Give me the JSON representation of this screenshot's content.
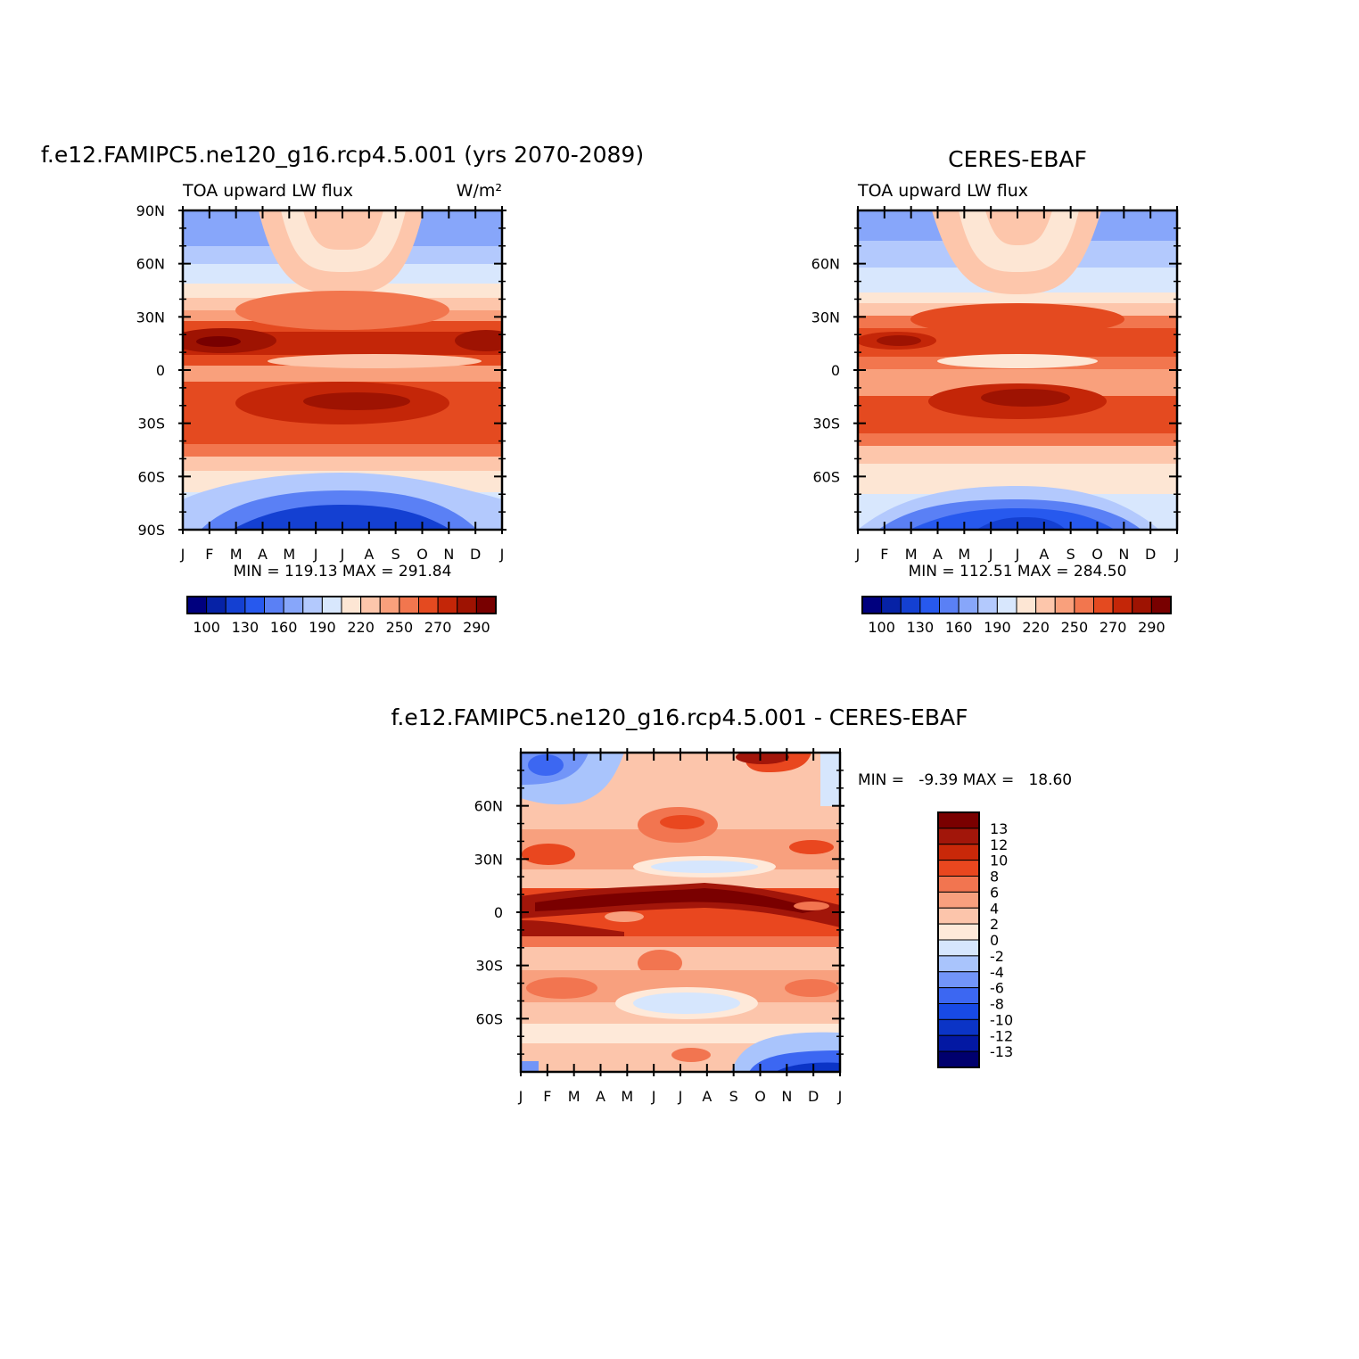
{
  "months": [
    "J",
    "F",
    "M",
    "A",
    "M",
    "J",
    "J",
    "A",
    "S",
    "O",
    "N",
    "D",
    "J"
  ],
  "palette": {
    "upward": [
      "#00007e",
      "#0622a6",
      "#1440d2",
      "#2759ee",
      "#5a80f5",
      "#87a6fa",
      "#b3c9fd",
      "#d8e7fd",
      "#fde6d4",
      "#fdc6ab",
      "#f9a07c",
      "#f2764e",
      "#e44a20",
      "#c42608",
      "#9e1302",
      "#780000"
    ],
    "diff": [
      "#00006e",
      "#0318a3",
      "#0b34c6",
      "#184ae5",
      "#3c67f2",
      "#7295f8",
      "#a9c4fc",
      "#d6e6fd",
      "#fee9d9",
      "#fcc5ab",
      "#f8a07e",
      "#f27550",
      "#e9471f",
      "#c92809",
      "#a2160a",
      "#7a0000"
    ]
  },
  "charts": [
    {
      "id": "model",
      "main_title": "f.e12.FAMIPC5.ne120_g16.rcp4.5.001 (yrs 2070-2089)",
      "left_string": "TOA upward LW flux",
      "right_string": "W/m²",
      "ytick_labels": [
        "90N",
        "60N",
        "30N",
        "0",
        "30S",
        "60S",
        "90S"
      ],
      "minmax": "MIN = 119.13 MAX = 291.84",
      "colorbar_labels": [
        "100",
        "130",
        "160",
        "190",
        "220",
        "250",
        "270",
        "290"
      ]
    },
    {
      "id": "obs",
      "main_title": "CERES-EBAF",
      "left_string": "TOA upward LW flux",
      "ytick_labels": [
        "60N",
        "30N",
        "0",
        "30S",
        "60S"
      ],
      "minmax": "MIN = 112.51 MAX = 284.50",
      "colorbar_labels": [
        "100",
        "130",
        "160",
        "190",
        "220",
        "250",
        "270",
        "290"
      ]
    },
    {
      "id": "diff",
      "main_title": "f.e12.FAMIPC5.ne120_g16.rcp4.5.001 - CERES-EBAF",
      "ytick_labels": [
        "60N",
        "30N",
        "0",
        "30S",
        "60S"
      ],
      "minmax": "MIN =   -9.39 MAX =   18.60",
      "colorbar_labels": [
        "13",
        "12",
        "10",
        "8",
        "6",
        "4",
        "2",
        "0",
        "-2",
        "-4",
        "-6",
        "-8",
        "-10",
        "-12",
        "-13"
      ]
    }
  ],
  "chart_data": [
    {
      "type": "heatmap",
      "title": "f.e12.FAMIPC5.ne120_g16.rcp4.5.001 (yrs 2070-2089)",
      "subtitle": "TOA upward LW flux",
      "units": "W/m²",
      "x": [
        "J",
        "F",
        "M",
        "A",
        "M",
        "J",
        "J",
        "A",
        "S",
        "O",
        "N",
        "D",
        "J"
      ],
      "y_ticks": [
        "90N",
        "60N",
        "30N",
        "0",
        "30S",
        "60S",
        "90S"
      ],
      "ylim": [
        -90,
        90
      ],
      "min": 119.13,
      "max": 291.84,
      "contour_levels": [
        100,
        110,
        120,
        130,
        140,
        150,
        160,
        170,
        180,
        190,
        200,
        210,
        220,
        230,
        240,
        250,
        260,
        270,
        280,
        290
      ],
      "colorbar_labels": [
        100,
        130,
        160,
        190,
        220,
        250,
        270,
        290
      ],
      "lat_profile_approx": {
        "lat": [
          -90,
          -70,
          -50,
          -30,
          -15,
          0,
          15,
          30,
          50,
          70,
          90
        ],
        "value": [
          125,
          170,
          215,
          255,
          275,
          245,
          285,
          260,
          230,
          185,
          160
        ]
      }
    },
    {
      "type": "heatmap",
      "title": "CERES-EBAF",
      "subtitle": "TOA upward LW flux",
      "x": [
        "J",
        "F",
        "M",
        "A",
        "M",
        "J",
        "J",
        "A",
        "S",
        "O",
        "N",
        "D",
        "J"
      ],
      "y_ticks": [
        "60N",
        "30N",
        "0",
        "30S",
        "60S"
      ],
      "ylim": [
        -90,
        90
      ],
      "min": 112.51,
      "max": 284.5,
      "contour_levels": [
        100,
        110,
        120,
        130,
        140,
        150,
        160,
        170,
        180,
        190,
        200,
        210,
        220,
        230,
        240,
        250,
        260,
        270,
        280,
        290
      ],
      "colorbar_labels": [
        100,
        130,
        160,
        190,
        220,
        250,
        270,
        290
      ],
      "lat_profile_approx": {
        "lat": [
          -90,
          -70,
          -50,
          -30,
          -15,
          0,
          15,
          30,
          50,
          70,
          90
        ],
        "value": [
          118,
          165,
          210,
          250,
          270,
          240,
          280,
          255,
          225,
          180,
          155
        ]
      }
    },
    {
      "type": "heatmap",
      "title": "f.e12.FAMIPC5.ne120_g16.rcp4.5.001 - CERES-EBAF",
      "x": [
        "J",
        "F",
        "M",
        "A",
        "M",
        "J",
        "J",
        "A",
        "S",
        "O",
        "N",
        "D",
        "J"
      ],
      "y_ticks": [
        "60N",
        "30N",
        "0",
        "30S",
        "60S"
      ],
      "ylim": [
        -90,
        90
      ],
      "min": -9.39,
      "max": 18.6,
      "contour_levels": [
        -13,
        -12,
        -10,
        -8,
        -6,
        -4,
        -2,
        0,
        2,
        4,
        6,
        8,
        10,
        12,
        13
      ],
      "colorbar_labels": [
        13,
        12,
        10,
        8,
        6,
        4,
        2,
        0,
        -2,
        -4,
        -6,
        -8,
        -10,
        -12,
        -13
      ]
    }
  ]
}
